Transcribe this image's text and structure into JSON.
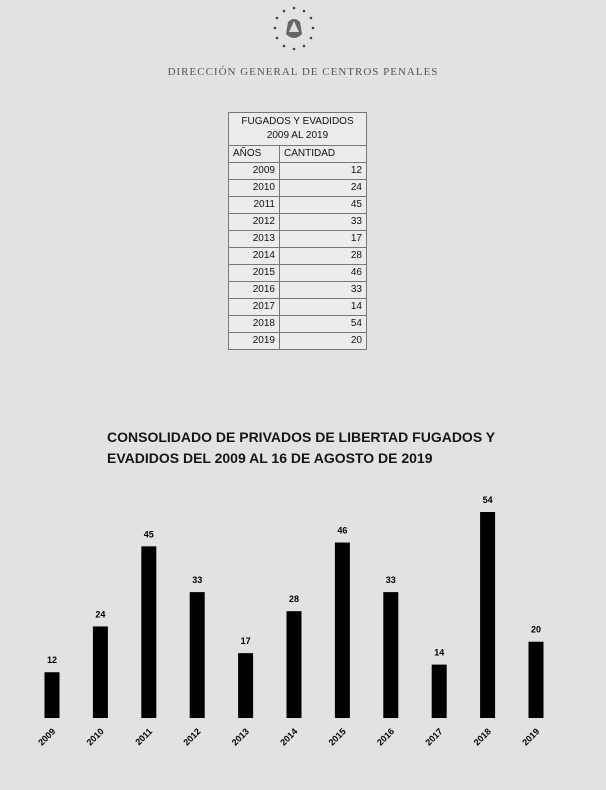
{
  "header": {
    "organization": "DIRECCIÓN GENERAL DE CENTROS PENALES",
    "seal_icon": "coat-of-arms-seal"
  },
  "table": {
    "title_line1": "FUGADOS Y EVADIDOS",
    "title_line2": "2009 AL 2019",
    "columns": [
      "AÑOS",
      "CANTIDAD"
    ],
    "rows": [
      [
        "2009",
        "12"
      ],
      [
        "2010",
        "24"
      ],
      [
        "2011",
        "45"
      ],
      [
        "2012",
        "33"
      ],
      [
        "2013",
        "17"
      ],
      [
        "2014",
        "28"
      ],
      [
        "2015",
        "46"
      ],
      [
        "2016",
        "33"
      ],
      [
        "2017",
        "14"
      ],
      [
        "2018",
        "54"
      ],
      [
        "2019",
        "20"
      ]
    ]
  },
  "chart_data": {
    "type": "bar",
    "title_line1": "CONSOLIDADO DE PRIVADOS DE LIBERTAD FUGADOS Y",
    "title_line2": "EVADIDOS DEL 2009 AL 16 DE AGOSTO DE 2019",
    "categories": [
      "2009",
      "2010",
      "2011",
      "2012",
      "2013",
      "2014",
      "2015",
      "2016",
      "2017",
      "2018",
      "2019"
    ],
    "values": [
      12,
      24,
      45,
      33,
      17,
      28,
      46,
      33,
      14,
      54,
      20
    ],
    "data_labels": true,
    "grid": false,
    "bar_color": "#000000",
    "ylim": [
      0,
      54
    ]
  }
}
